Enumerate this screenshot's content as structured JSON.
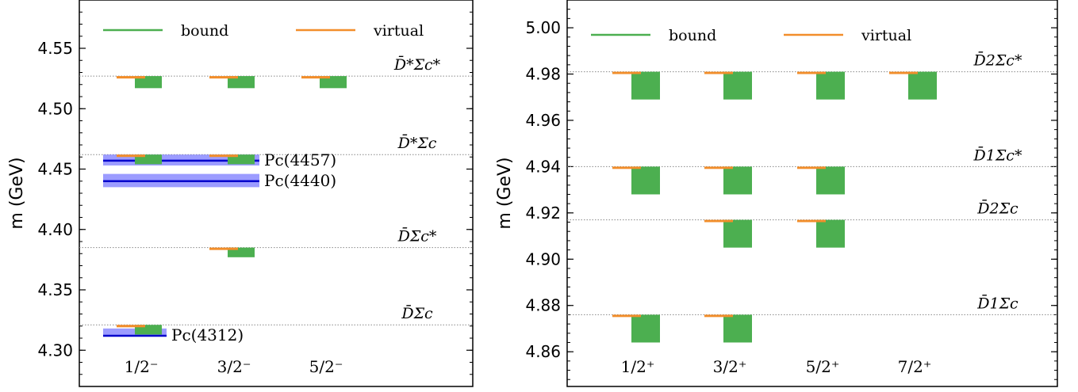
{
  "colors": {
    "bound": "#4caf50",
    "virtual": "#f28e2b",
    "exp_band": "#7b7bff",
    "exp_line": "#0000cc",
    "threshold": "#888888"
  },
  "legend": {
    "bound": "bound",
    "virtual": "virtual"
  },
  "chart_data": [
    {
      "type": "bar",
      "ylabel": "m (GeV)",
      "ylim": [
        4.27,
        4.59
      ],
      "yticks": [
        "4.30",
        "4.35",
        "4.40",
        "4.45",
        "4.50",
        "4.55"
      ],
      "yticks_values": [
        4.3,
        4.35,
        4.4,
        4.45,
        4.5,
        4.55
      ],
      "categories": [
        "1/2⁻",
        "3/2⁻",
        "5/2⁻"
      ],
      "thresholds": [
        {
          "label": "D̄*Σc*",
          "value": 4.527
        },
        {
          "label": "D̄*Σc",
          "value": 4.462
        },
        {
          "label": "D̄Σc*",
          "value": 4.385
        },
        {
          "label": "D̄Σc",
          "value": 4.321
        }
      ],
      "bound": [
        {
          "cat": 0,
          "low": 4.517,
          "high": 4.527
        },
        {
          "cat": 1,
          "low": 4.517,
          "high": 4.527
        },
        {
          "cat": 2,
          "low": 4.517,
          "high": 4.527
        },
        {
          "cat": 0,
          "low": 4.454,
          "high": 4.462
        },
        {
          "cat": 1,
          "low": 4.454,
          "high": 4.462
        },
        {
          "cat": 1,
          "low": 4.377,
          "high": 4.385
        },
        {
          "cat": 0,
          "low": 4.313,
          "high": 4.321
        }
      ],
      "virtual": [
        {
          "cat": 0,
          "low": 4.525,
          "high": 4.527
        },
        {
          "cat": 1,
          "low": 4.525,
          "high": 4.527
        },
        {
          "cat": 2,
          "low": 4.525,
          "high": 4.527
        },
        {
          "cat": 0,
          "low": 4.46,
          "high": 4.462
        },
        {
          "cat": 1,
          "low": 4.46,
          "high": 4.462
        },
        {
          "cat": 1,
          "low": 4.383,
          "high": 4.385
        },
        {
          "cat": 0,
          "low": 4.319,
          "high": 4.321
        }
      ],
      "experiments": [
        {
          "label": "Pc(4457)",
          "value": 4.457,
          "low": 4.453,
          "high": 4.462,
          "cats": [
            0,
            1
          ]
        },
        {
          "label": "Pc(4440)",
          "value": 4.44,
          "low": 4.435,
          "high": 4.446,
          "cats": [
            0,
            1
          ]
        },
        {
          "label": "Pc(4312)",
          "value": 4.312,
          "low": 4.312,
          "high": 4.318,
          "cats": [
            0
          ]
        }
      ]
    },
    {
      "type": "bar",
      "ylabel": "m (GeV)",
      "ylim": [
        4.845,
        5.012
      ],
      "yticks": [
        "4.86",
        "4.88",
        "4.90",
        "4.92",
        "4.94",
        "4.96",
        "4.98",
        "5.00"
      ],
      "yticks_values": [
        4.86,
        4.88,
        4.9,
        4.92,
        4.94,
        4.96,
        4.98,
        5.0
      ],
      "categories": [
        "1/2⁺",
        "3/2⁺",
        "5/2⁺",
        "7/2⁺"
      ],
      "thresholds": [
        {
          "label": "D̄2Σc*",
          "value": 4.981
        },
        {
          "label": "D̄1Σc*",
          "value": 4.94
        },
        {
          "label": "D̄2Σc",
          "value": 4.917
        },
        {
          "label": "D̄1Σc",
          "value": 4.876
        }
      ],
      "bound": [
        {
          "cat": 0,
          "low": 4.969,
          "high": 4.981
        },
        {
          "cat": 1,
          "low": 4.969,
          "high": 4.981
        },
        {
          "cat": 2,
          "low": 4.969,
          "high": 4.981
        },
        {
          "cat": 3,
          "low": 4.969,
          "high": 4.981
        },
        {
          "cat": 0,
          "low": 4.928,
          "high": 4.94
        },
        {
          "cat": 1,
          "low": 4.928,
          "high": 4.94
        },
        {
          "cat": 2,
          "low": 4.928,
          "high": 4.94
        },
        {
          "cat": 1,
          "low": 4.905,
          "high": 4.917
        },
        {
          "cat": 2,
          "low": 4.905,
          "high": 4.917
        },
        {
          "cat": 0,
          "low": 4.864,
          "high": 4.876
        },
        {
          "cat": 1,
          "low": 4.864,
          "high": 4.876
        }
      ],
      "virtual": [
        {
          "cat": 0,
          "low": 4.98,
          "high": 4.981
        },
        {
          "cat": 1,
          "low": 4.98,
          "high": 4.981
        },
        {
          "cat": 2,
          "low": 4.98,
          "high": 4.981
        },
        {
          "cat": 3,
          "low": 4.98,
          "high": 4.981
        },
        {
          "cat": 0,
          "low": 4.939,
          "high": 4.94
        },
        {
          "cat": 1,
          "low": 4.939,
          "high": 4.94
        },
        {
          "cat": 2,
          "low": 4.939,
          "high": 4.94
        },
        {
          "cat": 1,
          "low": 4.916,
          "high": 4.917
        },
        {
          "cat": 2,
          "low": 4.916,
          "high": 4.917
        },
        {
          "cat": 0,
          "low": 4.875,
          "high": 4.876
        },
        {
          "cat": 1,
          "low": 4.875,
          "high": 4.876
        }
      ],
      "experiments": []
    }
  ]
}
